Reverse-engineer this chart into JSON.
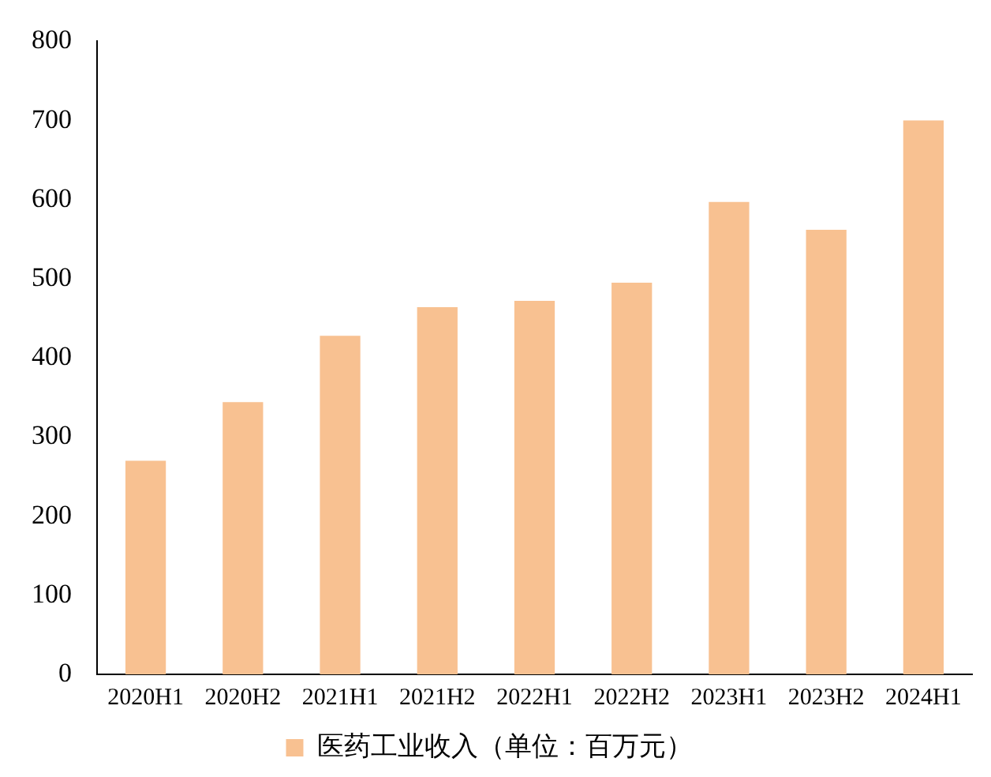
{
  "chart_data": {
    "type": "bar",
    "categories": [
      "2020H1",
      "2020H2",
      "2021H1",
      "2021H2",
      "2022H1",
      "2022H2",
      "2023H1",
      "2023H2",
      "2024H1"
    ],
    "series": [
      {
        "name": "医药工业收入（单位：百万元）",
        "color": "#f8c191",
        "values": [
          270,
          344,
          428,
          464,
          472,
          495,
          597,
          562,
          700
        ]
      }
    ],
    "ylim": [
      0,
      800
    ],
    "yticks": [
      0,
      100,
      200,
      300,
      400,
      500,
      600,
      700,
      800
    ],
    "grid": false,
    "legend": "bottom"
  }
}
